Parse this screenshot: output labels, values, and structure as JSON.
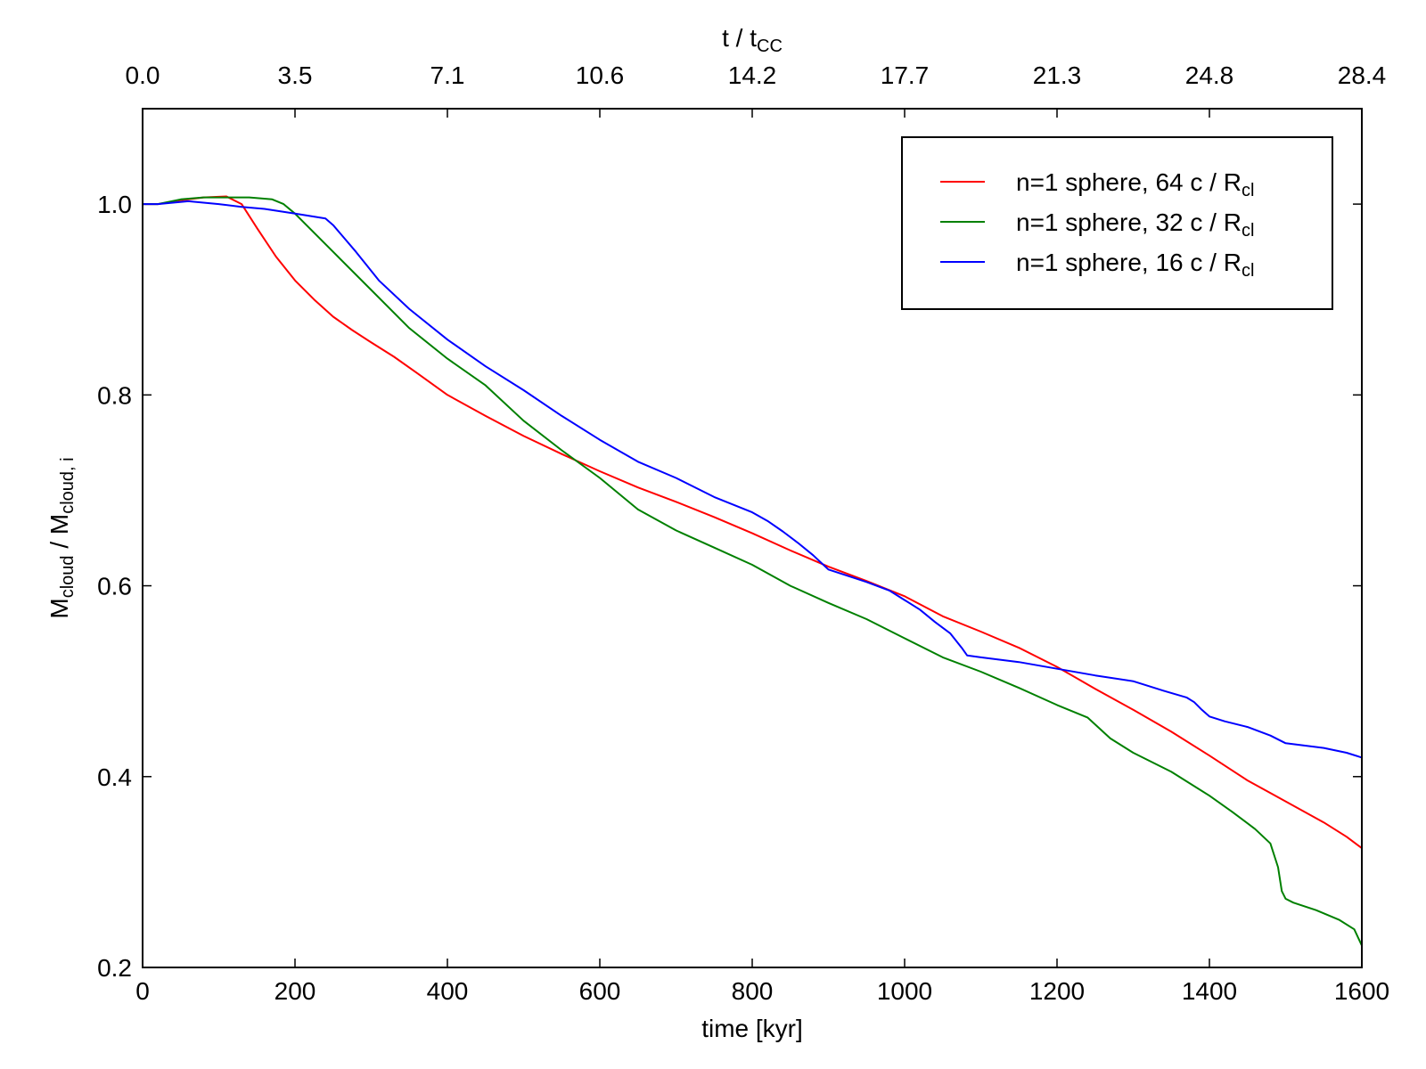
{
  "chart_data": {
    "type": "line",
    "xlabel": "time [kyr]",
    "ylabel": {
      "base": "M",
      "base_sub": "cloud",
      "sep": " / ",
      "base2": "M",
      "base2_sub": "cloud, i"
    },
    "top_xlabel": {
      "base": "t / t",
      "sub": "CC"
    },
    "xlim": [
      0,
      1600
    ],
    "ylim": [
      0.2,
      1.1
    ],
    "xticks": [
      0,
      200,
      400,
      600,
      800,
      1000,
      1200,
      1400,
      1600
    ],
    "xtick_labels": [
      "0",
      "200",
      "400",
      "600",
      "800",
      "1000",
      "1200",
      "1400",
      "1600"
    ],
    "yticks": [
      0.2,
      0.4,
      0.6,
      0.8,
      1.0
    ],
    "ytick_labels": [
      "0.2",
      "0.4",
      "0.6",
      "0.8",
      "1.0"
    ],
    "top_xticks": [
      0,
      200,
      400,
      600,
      800,
      1000,
      1200,
      1400,
      1600
    ],
    "top_xtick_labels": [
      "0.0",
      "3.5",
      "7.1",
      "10.6",
      "14.2",
      "17.7",
      "21.3",
      "24.8",
      "28.4"
    ],
    "legend_position": "top-right",
    "series": [
      {
        "name": {
          "text": "n=1 sphere, 64 c / R",
          "sub": "cl"
        },
        "color": "#ff0000",
        "x": [
          0,
          20,
          50,
          80,
          110,
          130,
          150,
          175,
          200,
          225,
          250,
          275,
          300,
          330,
          360,
          400,
          450,
          500,
          550,
          600,
          650,
          700,
          750,
          800,
          850,
          900,
          950,
          1000,
          1050,
          1100,
          1150,
          1200,
          1250,
          1300,
          1350,
          1400,
          1450,
          1500,
          1550,
          1580,
          1600
        ],
        "y": [
          1.0,
          1.0,
          1.004,
          1.007,
          1.008,
          1.0,
          0.975,
          0.945,
          0.92,
          0.9,
          0.882,
          0.868,
          0.855,
          0.84,
          0.823,
          0.8,
          0.778,
          0.757,
          0.738,
          0.72,
          0.703,
          0.688,
          0.672,
          0.655,
          0.637,
          0.62,
          0.605,
          0.589,
          0.568,
          0.552,
          0.535,
          0.515,
          0.492,
          0.47,
          0.447,
          0.422,
          0.396,
          0.374,
          0.352,
          0.337,
          0.325
        ]
      },
      {
        "name": {
          "text": "n=1 sphere, 32 c / R",
          "sub": "cl"
        },
        "color": "#008000",
        "x": [
          0,
          20,
          50,
          80,
          110,
          140,
          170,
          185,
          200,
          250,
          300,
          350,
          400,
          450,
          500,
          550,
          600,
          650,
          700,
          750,
          800,
          850,
          900,
          950,
          1000,
          1050,
          1100,
          1150,
          1200,
          1240,
          1270,
          1300,
          1350,
          1400,
          1430,
          1460,
          1480,
          1490,
          1495,
          1500,
          1510,
          1540,
          1570,
          1590,
          1600
        ],
        "y": [
          1.0,
          1.0,
          1.005,
          1.007,
          1.007,
          1.007,
          1.005,
          1.0,
          0.99,
          0.95,
          0.91,
          0.87,
          0.838,
          0.81,
          0.773,
          0.742,
          0.713,
          0.68,
          0.658,
          0.64,
          0.622,
          0.6,
          0.582,
          0.565,
          0.545,
          0.525,
          0.51,
          0.493,
          0.475,
          0.462,
          0.44,
          0.425,
          0.405,
          0.38,
          0.363,
          0.345,
          0.33,
          0.305,
          0.28,
          0.272,
          0.268,
          0.26,
          0.25,
          0.24,
          0.223
        ]
      },
      {
        "name": {
          "text": "n=1 sphere, 16 c / R",
          "sub": "cl"
        },
        "color": "#0000ff",
        "x": [
          0,
          20,
          60,
          100,
          130,
          160,
          200,
          240,
          250,
          280,
          310,
          350,
          400,
          450,
          500,
          550,
          600,
          650,
          700,
          750,
          800,
          820,
          840,
          860,
          880,
          900,
          950,
          980,
          1000,
          1020,
          1040,
          1060,
          1075,
          1082,
          1100,
          1150,
          1200,
          1250,
          1300,
          1340,
          1370,
          1380,
          1390,
          1400,
          1420,
          1450,
          1480,
          1500,
          1550,
          1580,
          1600
        ],
        "y": [
          1.0,
          1.0,
          1.003,
          1.0,
          0.997,
          0.995,
          0.99,
          0.985,
          0.978,
          0.95,
          0.92,
          0.89,
          0.858,
          0.83,
          0.805,
          0.778,
          0.753,
          0.73,
          0.713,
          0.693,
          0.677,
          0.668,
          0.657,
          0.645,
          0.632,
          0.617,
          0.604,
          0.595,
          0.585,
          0.575,
          0.562,
          0.55,
          0.535,
          0.527,
          0.525,
          0.52,
          0.513,
          0.506,
          0.5,
          0.49,
          0.483,
          0.478,
          0.47,
          0.463,
          0.458,
          0.452,
          0.443,
          0.435,
          0.43,
          0.425,
          0.42
        ]
      }
    ]
  }
}
